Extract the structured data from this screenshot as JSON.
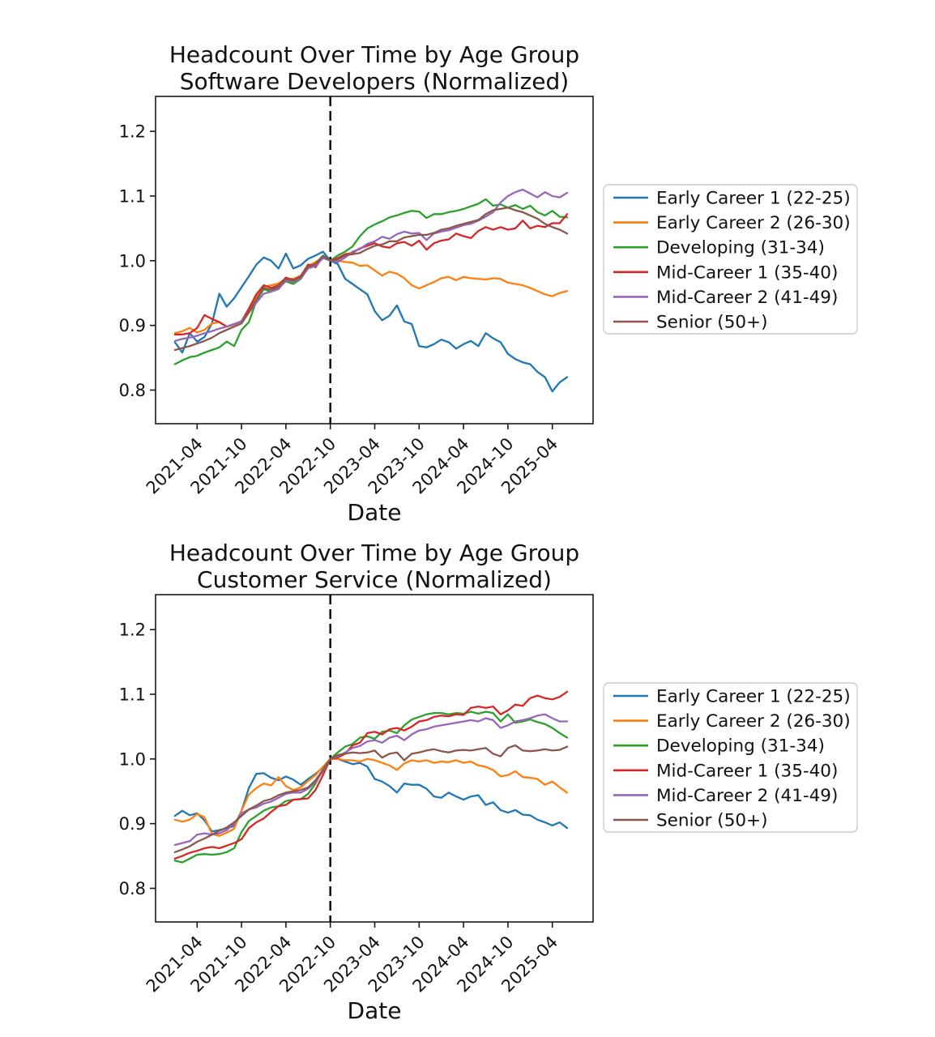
{
  "page": {
    "background": "#ffffff"
  },
  "palette": {
    "blue": "#1f77b4",
    "orange": "#ff7f0e",
    "green": "#2ca02c",
    "red": "#d62728",
    "purple": "#9467bd",
    "brown": "#8c564b",
    "axis": "#1a1a1a",
    "vline": "#000000",
    "legend_border": "#cccccc"
  },
  "chart_data": [
    {
      "type": "line",
      "title": "Headcount Over Time by Age Group",
      "subtitle": "Software Developers (Normalized)",
      "xlabel": "Date",
      "x_unit": "month",
      "x_start": "2021-01",
      "x_end": "2025-06",
      "ylim": [
        0.748,
        1.254
      ],
      "yticks": [
        0.8,
        0.9,
        1.0,
        1.1,
        1.2
      ],
      "xtick_labels": [
        "2021-04",
        "2021-10",
        "2022-04",
        "2022-10",
        "2023-04",
        "2023-10",
        "2024-04",
        "2024-10",
        "2025-04"
      ],
      "xtick_month_index": [
        3,
        9,
        15,
        21,
        27,
        33,
        39,
        45,
        51
      ],
      "vline": {
        "month_index": 21,
        "date": "2022-10",
        "style": "dashed"
      },
      "grid": false,
      "legend_position": "right",
      "series": [
        {
          "name": "Early Career 1 (22-25)",
          "color": "#1f77b4",
          "values": [
            0.874,
            0.858,
            0.888,
            0.875,
            0.882,
            0.903,
            0.949,
            0.929,
            0.942,
            0.959,
            0.976,
            0.994,
            1.005,
            1.0,
            0.988,
            1.011,
            0.988,
            0.993,
            1.003,
            1.008,
            1.014,
            1.0,
            0.995,
            0.972,
            0.964,
            0.956,
            0.948,
            0.922,
            0.908,
            0.915,
            0.931,
            0.906,
            0.902,
            0.868,
            0.866,
            0.871,
            0.878,
            0.874,
            0.864,
            0.871,
            0.876,
            0.868,
            0.888,
            0.88,
            0.874,
            0.856,
            0.848,
            0.843,
            0.84,
            0.828,
            0.82,
            0.798,
            0.812,
            0.82
          ]
        },
        {
          "name": "Early Career 2 (26-30)",
          "color": "#ff7f0e",
          "values": [
            0.888,
            0.891,
            0.896,
            0.889,
            0.893,
            0.903,
            0.905,
            0.898,
            0.901,
            0.907,
            0.925,
            0.945,
            0.96,
            0.962,
            0.965,
            0.972,
            0.972,
            0.977,
            0.992,
            0.998,
            1.005,
            1.0,
            1.0,
            0.998,
            0.997,
            0.992,
            0.993,
            0.985,
            0.977,
            0.983,
            0.98,
            0.973,
            0.962,
            0.957,
            0.962,
            0.967,
            0.973,
            0.975,
            0.97,
            0.975,
            0.973,
            0.972,
            0.971,
            0.973,
            0.972,
            0.966,
            0.964,
            0.962,
            0.958,
            0.953,
            0.948,
            0.945,
            0.95,
            0.953
          ]
        },
        {
          "name": "Developing (31-34)",
          "color": "#2ca02c",
          "values": [
            0.84,
            0.846,
            0.851,
            0.853,
            0.858,
            0.862,
            0.866,
            0.875,
            0.868,
            0.893,
            0.905,
            0.938,
            0.956,
            0.952,
            0.958,
            0.968,
            0.964,
            0.972,
            0.989,
            0.995,
            1.008,
            1.0,
            1.008,
            1.014,
            1.022,
            1.038,
            1.05,
            1.056,
            1.061,
            1.067,
            1.07,
            1.074,
            1.077,
            1.076,
            1.066,
            1.072,
            1.072,
            1.075,
            1.077,
            1.08,
            1.084,
            1.088,
            1.095,
            1.085,
            1.087,
            1.082,
            1.086,
            1.08,
            1.085,
            1.075,
            1.07,
            1.077,
            1.068,
            1.067
          ]
        },
        {
          "name": "Mid-Career 1 (35-40)",
          "color": "#d62728",
          "values": [
            0.886,
            0.886,
            0.888,
            0.896,
            0.916,
            0.91,
            0.905,
            0.898,
            0.902,
            0.906,
            0.926,
            0.948,
            0.962,
            0.958,
            0.962,
            0.974,
            0.97,
            0.976,
            0.994,
            0.99,
            1.006,
            1.0,
            1.004,
            1.01,
            1.012,
            1.019,
            1.023,
            1.027,
            1.022,
            1.02,
            1.027,
            1.029,
            1.023,
            1.031,
            1.017,
            1.027,
            1.031,
            1.033,
            1.042,
            1.038,
            1.035,
            1.046,
            1.052,
            1.048,
            1.052,
            1.048,
            1.05,
            1.062,
            1.05,
            1.054,
            1.052,
            1.058,
            1.058,
            1.072
          ]
        },
        {
          "name": "Mid-Career 2 (41-49)",
          "color": "#9467bd",
          "values": [
            0.876,
            0.879,
            0.881,
            0.884,
            0.888,
            0.891,
            0.895,
            0.898,
            0.902,
            0.906,
            0.92,
            0.935,
            0.949,
            0.952,
            0.956,
            0.97,
            0.967,
            0.973,
            0.988,
            0.992,
            1.004,
            1.0,
            0.998,
            1.005,
            1.014,
            1.018,
            1.026,
            1.03,
            1.037,
            1.034,
            1.041,
            1.045,
            1.042,
            1.043,
            1.032,
            1.042,
            1.045,
            1.047,
            1.051,
            1.055,
            1.057,
            1.062,
            1.068,
            1.075,
            1.09,
            1.1,
            1.106,
            1.11,
            1.104,
            1.098,
            1.106,
            1.1,
            1.098,
            1.105
          ]
        },
        {
          "name": "Senior (50+)",
          "color": "#8c564b",
          "values": [
            0.862,
            0.865,
            0.868,
            0.872,
            0.876,
            0.881,
            0.888,
            0.893,
            0.898,
            0.903,
            0.92,
            0.94,
            0.958,
            0.955,
            0.96,
            0.972,
            0.969,
            0.975,
            0.991,
            0.995,
            1.007,
            1.0,
            1.002,
            1.008,
            1.01,
            1.012,
            1.018,
            1.023,
            1.025,
            1.03,
            1.03,
            1.036,
            1.038,
            1.04,
            1.04,
            1.043,
            1.048,
            1.05,
            1.054,
            1.057,
            1.06,
            1.063,
            1.072,
            1.078,
            1.08,
            1.082,
            1.078,
            1.075,
            1.07,
            1.065,
            1.057,
            1.052,
            1.048,
            1.042
          ]
        }
      ]
    },
    {
      "type": "line",
      "title": "Headcount Over Time by Age Group",
      "subtitle": "Customer Service (Normalized)",
      "xlabel": "Date",
      "x_unit": "month",
      "x_start": "2021-01",
      "x_end": "2025-06",
      "ylim": [
        0.748,
        1.254
      ],
      "yticks": [
        0.8,
        0.9,
        1.0,
        1.1,
        1.2
      ],
      "xtick_labels": [
        "2021-04",
        "2021-10",
        "2022-04",
        "2022-10",
        "2023-04",
        "2023-10",
        "2024-04",
        "2024-10",
        "2025-04"
      ],
      "xtick_month_index": [
        3,
        9,
        15,
        21,
        27,
        33,
        39,
        45,
        51
      ],
      "vline": {
        "month_index": 21,
        "date": "2022-10",
        "style": "dashed"
      },
      "grid": false,
      "legend_position": "right",
      "series": [
        {
          "name": "Early Career 1 (22-25)",
          "color": "#1f77b4",
          "values": [
            0.912,
            0.92,
            0.913,
            0.916,
            0.905,
            0.888,
            0.89,
            0.893,
            0.896,
            0.92,
            0.955,
            0.977,
            0.978,
            0.971,
            0.967,
            0.973,
            0.968,
            0.96,
            0.969,
            0.977,
            0.987,
            1.0,
            1.0,
            0.996,
            0.992,
            0.994,
            0.988,
            0.969,
            0.965,
            0.958,
            0.948,
            0.962,
            0.96,
            0.96,
            0.954,
            0.942,
            0.94,
            0.948,
            0.942,
            0.937,
            0.942,
            0.944,
            0.929,
            0.933,
            0.921,
            0.917,
            0.921,
            0.914,
            0.913,
            0.906,
            0.902,
            0.897,
            0.902,
            0.893
          ]
        },
        {
          "name": "Early Career 2 (26-30)",
          "color": "#ff7f0e",
          "values": [
            0.906,
            0.903,
            0.906,
            0.915,
            0.91,
            0.884,
            0.881,
            0.886,
            0.892,
            0.92,
            0.945,
            0.955,
            0.962,
            0.959,
            0.972,
            0.958,
            0.952,
            0.956,
            0.966,
            0.975,
            0.988,
            1.0,
            1.0,
            0.998,
            0.998,
            0.996,
            1.0,
            0.998,
            0.994,
            0.99,
            0.983,
            0.993,
            0.998,
            0.996,
            0.998,
            0.994,
            0.996,
            0.995,
            0.998,
            0.994,
            0.996,
            0.99,
            0.988,
            0.983,
            0.973,
            0.975,
            0.981,
            0.972,
            0.971,
            0.969,
            0.96,
            0.965,
            0.956,
            0.948
          ]
        },
        {
          "name": "Developing (31-34)",
          "color": "#2ca02c",
          "values": [
            0.843,
            0.84,
            0.846,
            0.852,
            0.853,
            0.852,
            0.853,
            0.856,
            0.862,
            0.887,
            0.904,
            0.912,
            0.92,
            0.925,
            0.927,
            0.935,
            0.937,
            0.938,
            0.946,
            0.962,
            0.984,
            1.0,
            1.01,
            1.019,
            1.023,
            1.033,
            1.035,
            1.031,
            1.042,
            1.044,
            1.04,
            1.052,
            1.061,
            1.065,
            1.069,
            1.071,
            1.071,
            1.069,
            1.071,
            1.07,
            1.073,
            1.07,
            1.073,
            1.071,
            1.058,
            1.069,
            1.056,
            1.058,
            1.061,
            1.057,
            1.054,
            1.048,
            1.04,
            1.033
          ]
        },
        {
          "name": "Mid-Career 1 (35-40)",
          "color": "#d62728",
          "values": [
            0.846,
            0.85,
            0.855,
            0.858,
            0.862,
            0.864,
            0.862,
            0.866,
            0.87,
            0.876,
            0.893,
            0.902,
            0.908,
            0.918,
            0.927,
            0.929,
            0.937,
            0.938,
            0.939,
            0.952,
            0.975,
            1.0,
            1.002,
            1.008,
            1.021,
            1.025,
            1.04,
            1.042,
            1.038,
            1.046,
            1.048,
            1.044,
            1.05,
            1.058,
            1.06,
            1.065,
            1.067,
            1.066,
            1.069,
            1.068,
            1.079,
            1.081,
            1.079,
            1.081,
            1.069,
            1.075,
            1.084,
            1.082,
            1.094,
            1.098,
            1.094,
            1.092,
            1.096,
            1.104
          ]
        },
        {
          "name": "Mid-Career 2 (41-49)",
          "color": "#9467bd",
          "values": [
            0.867,
            0.87,
            0.873,
            0.883,
            0.885,
            0.883,
            0.885,
            0.89,
            0.9,
            0.916,
            0.922,
            0.925,
            0.931,
            0.934,
            0.94,
            0.946,
            0.948,
            0.948,
            0.954,
            0.965,
            0.981,
            1.0,
            1.004,
            1.01,
            1.017,
            1.02,
            1.027,
            1.029,
            1.025,
            1.033,
            1.036,
            1.029,
            1.038,
            1.044,
            1.046,
            1.05,
            1.052,
            1.054,
            1.056,
            1.058,
            1.06,
            1.058,
            1.063,
            1.06,
            1.048,
            1.052,
            1.058,
            1.06,
            1.063,
            1.067,
            1.069,
            1.063,
            1.058,
            1.058
          ]
        },
        {
          "name": "Senior (50+)",
          "color": "#8c564b",
          "values": [
            0.856,
            0.86,
            0.865,
            0.872,
            0.877,
            0.883,
            0.889,
            0.894,
            0.902,
            0.912,
            0.922,
            0.928,
            0.935,
            0.938,
            0.944,
            0.948,
            0.95,
            0.952,
            0.956,
            0.967,
            0.983,
            1.0,
            1.006,
            1.008,
            1.01,
            1.009,
            1.01,
            1.013,
            1.002,
            1.008,
            1.01,
            0.998,
            1.008,
            1.01,
            1.013,
            1.015,
            1.012,
            1.01,
            1.013,
            1.014,
            1.013,
            1.015,
            1.017,
            1.008,
            1.004,
            1.017,
            1.021,
            1.013,
            1.012,
            1.013,
            1.015,
            1.013,
            1.014,
            1.019
          ]
        }
      ]
    }
  ]
}
